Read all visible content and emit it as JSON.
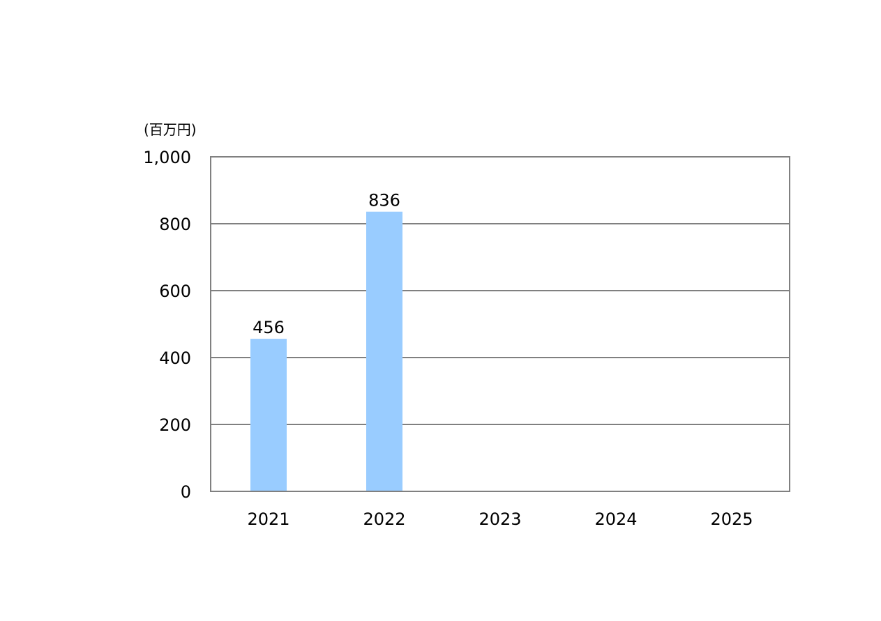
{
  "chart_data": {
    "type": "bar",
    "unit_label": "(百万円)",
    "categories": [
      "2021",
      "2022",
      "2023",
      "2024",
      "2025"
    ],
    "values": [
      456,
      836,
      null,
      null,
      null
    ],
    "data_labels": [
      "456",
      "836",
      "",
      "",
      ""
    ],
    "ylim": [
      0,
      1000
    ],
    "yticks": [
      0,
      200,
      400,
      600,
      800,
      1000
    ],
    "ytick_labels": [
      "0",
      "200",
      "400",
      "600",
      "800",
      "1,000"
    ],
    "grid": true,
    "legend": "none",
    "colors": {
      "bar": "#99ccff",
      "grid": "#808080",
      "frame": "#808080"
    }
  }
}
